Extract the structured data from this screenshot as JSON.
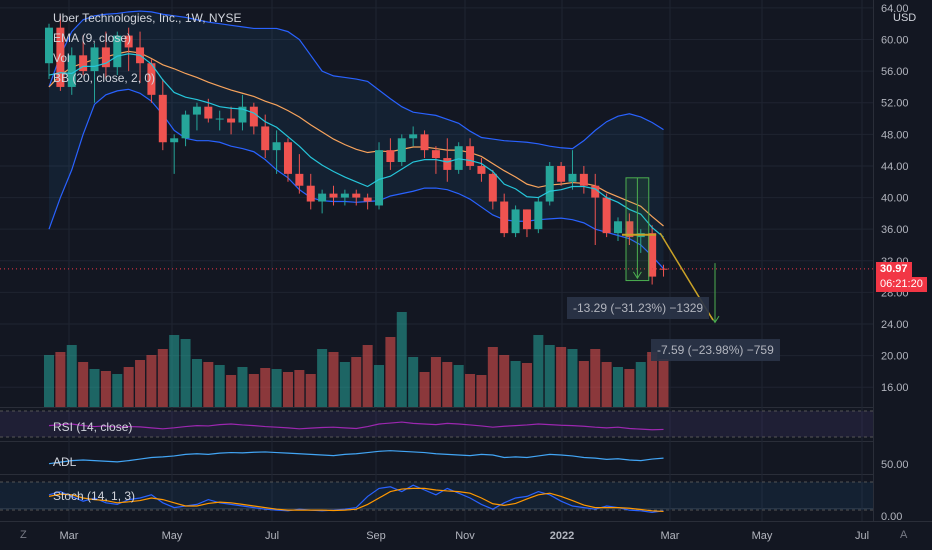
{
  "header": {
    "title": "Uber Technologies, Inc., 1W, NYSE",
    "currency": "USD"
  },
  "legend": {
    "ema": "EMA (9, close)",
    "vol": "Vol",
    "bb": "BB (20, close, 2, 0)"
  },
  "panes": {
    "rsi": "RSI (14, close)",
    "adl": "ADL",
    "stoch": "Stoch (14, 1, 3)"
  },
  "price_badge": {
    "price": "30.97",
    "countdown": "06:21:20"
  },
  "measurements": {
    "first": "-13.29 (−31.23%) −1329",
    "second": "-7.59 (−23.98%) −759"
  },
  "corner": {
    "left": "Z",
    "right": "A"
  },
  "colors": {
    "background": "#131722",
    "up": "#26a69a",
    "down": "#ef5350",
    "bb": "#2962ff",
    "ema": "#f7a35c",
    "rsi": "#9c27b0",
    "adl": "#42a5f5",
    "stoch_k": "#2962ff",
    "stoch_d": "#ff9800"
  },
  "chart_data": {
    "type": "candlestick",
    "y_ticks": [
      "64.00",
      "60.00",
      "56.00",
      "52.00",
      "48.00",
      "44.00",
      "40.00",
      "36.00",
      "32.00",
      "28.00",
      "24.00",
      "20.00",
      "16.00"
    ],
    "y_range": [
      13.5,
      65
    ],
    "stoch_ticks": [
      "50.00",
      "0.00"
    ],
    "x_ticks": [
      "Mar",
      "May",
      "Jul",
      "Sep",
      "Nov",
      "2022",
      "Mar",
      "May",
      "Jul"
    ],
    "candles": [
      {
        "o": 57.0,
        "h": 62.0,
        "l": 55.0,
        "c": 61.5
      },
      {
        "o": 61.5,
        "h": 63.0,
        "l": 53.5,
        "c": 54.0
      },
      {
        "o": 54.0,
        "h": 59.0,
        "l": 53.0,
        "c": 58.0
      },
      {
        "o": 58.0,
        "h": 60.5,
        "l": 55.5,
        "c": 56.0
      },
      {
        "o": 56.0,
        "h": 59.5,
        "l": 52.0,
        "c": 59.0
      },
      {
        "o": 59.0,
        "h": 61.0,
        "l": 55.0,
        "c": 56.5
      },
      {
        "o": 56.5,
        "h": 61.0,
        "l": 55.5,
        "c": 60.5
      },
      {
        "o": 60.5,
        "h": 61.5,
        "l": 56.0,
        "c": 59.0
      },
      {
        "o": 59.0,
        "h": 61.0,
        "l": 54.5,
        "c": 57.0
      },
      {
        "o": 57.0,
        "h": 57.5,
        "l": 52.0,
        "c": 53.0
      },
      {
        "o": 53.0,
        "h": 55.0,
        "l": 46.0,
        "c": 47.0
      },
      {
        "o": 47.0,
        "h": 48.0,
        "l": 43.0,
        "c": 47.5
      },
      {
        "o": 47.5,
        "h": 51.0,
        "l": 46.5,
        "c": 50.5
      },
      {
        "o": 50.5,
        "h": 52.0,
        "l": 48.5,
        "c": 51.5
      },
      {
        "o": 51.5,
        "h": 52.5,
        "l": 49.5,
        "c": 50.0
      },
      {
        "o": 50.0,
        "h": 51.0,
        "l": 48.5,
        "c": 50.0
      },
      {
        "o": 50.0,
        "h": 51.5,
        "l": 48.0,
        "c": 49.5
      },
      {
        "o": 49.5,
        "h": 53.0,
        "l": 48.5,
        "c": 51.5
      },
      {
        "o": 51.5,
        "h": 52.0,
        "l": 48.0,
        "c": 49.0
      },
      {
        "o": 49.0,
        "h": 50.5,
        "l": 45.0,
        "c": 46.0
      },
      {
        "o": 46.0,
        "h": 48.5,
        "l": 43.0,
        "c": 47.0
      },
      {
        "o": 47.0,
        "h": 47.5,
        "l": 42.0,
        "c": 43.0
      },
      {
        "o": 43.0,
        "h": 45.5,
        "l": 40.5,
        "c": 41.5
      },
      {
        "o": 41.5,
        "h": 43.0,
        "l": 38.5,
        "c": 39.5
      },
      {
        "o": 39.5,
        "h": 41.0,
        "l": 38.0,
        "c": 40.5
      },
      {
        "o": 40.5,
        "h": 41.5,
        "l": 39.0,
        "c": 40.0
      },
      {
        "o": 40.0,
        "h": 41.0,
        "l": 39.0,
        "c": 40.5
      },
      {
        "o": 40.5,
        "h": 41.0,
        "l": 39.0,
        "c": 40.0
      },
      {
        "o": 40.0,
        "h": 40.5,
        "l": 38.5,
        "c": 39.5
      },
      {
        "o": 39.0,
        "h": 47.0,
        "l": 38.5,
        "c": 46.0
      },
      {
        "o": 46.0,
        "h": 47.5,
        "l": 43.5,
        "c": 44.5
      },
      {
        "o": 44.5,
        "h": 48.0,
        "l": 44.0,
        "c": 47.5
      },
      {
        "o": 47.5,
        "h": 49.0,
        "l": 46.5,
        "c": 48.0
      },
      {
        "o": 48.0,
        "h": 48.5,
        "l": 45.0,
        "c": 46.0
      },
      {
        "o": 46.0,
        "h": 46.5,
        "l": 43.0,
        "c": 45.0
      },
      {
        "o": 45.0,
        "h": 47.5,
        "l": 42.0,
        "c": 43.5
      },
      {
        "o": 43.5,
        "h": 47.0,
        "l": 43.0,
        "c": 46.5
      },
      {
        "o": 46.5,
        "h": 47.5,
        "l": 43.5,
        "c": 44.0
      },
      {
        "o": 44.0,
        "h": 45.0,
        "l": 42.0,
        "c": 43.0
      },
      {
        "o": 43.0,
        "h": 43.5,
        "l": 38.5,
        "c": 39.5
      },
      {
        "o": 39.5,
        "h": 40.5,
        "l": 35.0,
        "c": 35.5
      },
      {
        "o": 35.5,
        "h": 39.0,
        "l": 35.0,
        "c": 38.5
      },
      {
        "o": 38.5,
        "h": 38.5,
        "l": 35.0,
        "c": 36.0
      },
      {
        "o": 36.0,
        "h": 40.0,
        "l": 35.5,
        "c": 39.5
      },
      {
        "o": 39.5,
        "h": 44.5,
        "l": 39.0,
        "c": 44.0
      },
      {
        "o": 44.0,
        "h": 44.5,
        "l": 41.5,
        "c": 42.0
      },
      {
        "o": 42.0,
        "h": 46.0,
        "l": 41.0,
        "c": 43.0
      },
      {
        "o": 43.0,
        "h": 44.0,
        "l": 40.5,
        "c": 41.5
      },
      {
        "o": 41.5,
        "h": 43.0,
        "l": 34.0,
        "c": 40.0
      },
      {
        "o": 40.0,
        "h": 40.5,
        "l": 35.0,
        "c": 35.5
      },
      {
        "o": 35.5,
        "h": 37.5,
        "l": 34.5,
        "c": 37.0
      },
      {
        "o": 37.0,
        "h": 38.0,
        "l": 34.0,
        "c": 35.0
      },
      {
        "o": 35.0,
        "h": 36.0,
        "l": 33.0,
        "c": 35.5
      },
      {
        "o": 35.5,
        "h": 36.5,
        "l": 29.0,
        "c": 30.0
      },
      {
        "o": 31.0,
        "h": 31.5,
        "l": 30.0,
        "c": 30.97
      }
    ],
    "volume": [
      0.52,
      0.55,
      0.62,
      0.45,
      0.38,
      0.36,
      0.33,
      0.4,
      0.47,
      0.52,
      0.58,
      0.72,
      0.68,
      0.48,
      0.45,
      0.42,
      0.32,
      0.4,
      0.33,
      0.39,
      0.38,
      0.35,
      0.37,
      0.33,
      0.58,
      0.55,
      0.45,
      0.5,
      0.62,
      0.42,
      0.7,
      0.95,
      0.5,
      0.35,
      0.5,
      0.45,
      0.42,
      0.33,
      0.32,
      0.6,
      0.52,
      0.46,
      0.44,
      0.72,
      0.62,
      0.6,
      0.58,
      0.46,
      0.58,
      0.45,
      0.4,
      0.38,
      0.45,
      0.55,
      0.48
    ],
    "bb_upper": [
      54,
      58,
      61,
      62.5,
      63,
      63.2,
      63.3,
      63.5,
      63.6,
      63.5,
      63.2,
      63,
      62.8,
      62.5,
      62.2,
      62,
      61.8,
      61.6,
      61.4,
      61.4,
      61.4,
      61,
      60,
      58,
      56,
      55.4,
      55.2,
      55,
      54.7,
      53.6,
      52.5,
      51.5,
      50.8,
      50.6,
      50.4,
      49.9,
      49.4,
      48.4,
      47.6,
      47.4,
      47.2,
      47.1,
      47,
      46.8,
      46.5,
      46.3,
      46.2,
      47.2,
      48.5,
      49.6,
      50.3,
      50.6,
      50.2,
      49.5,
      48.6
    ],
    "bb_lower": [
      36,
      40,
      43.5,
      48,
      51.8,
      53,
      53.5,
      53.7,
      53.2,
      52.2,
      50.5,
      48.5,
      47.5,
      47.2,
      47.2,
      47,
      46.5,
      46.2,
      45.8,
      44.8,
      43.5,
      42.5,
      41,
      40,
      39.6,
      39.5,
      39.5,
      39.4,
      39.5,
      39.6,
      40.2,
      40.5,
      40.8,
      41.2,
      41.2,
      41,
      40.5,
      39.8,
      38.8,
      37.8,
      37.2,
      37,
      37,
      37.2,
      37.3,
      37.4,
      37.2,
      36.8,
      36,
      35.6,
      35.2,
      34.8,
      34,
      32.6,
      31
    ],
    "ema": [
      54,
      55.5,
      56.5,
      57,
      57.5,
      57.8,
      58.2,
      58.5,
      58.3,
      57.6,
      56.8,
      56.3,
      55.7,
      55.2,
      54.6,
      54.1,
      53.6,
      53.2,
      52.8,
      52.2,
      51.7,
      51,
      50.2,
      49.2,
      48.3,
      47.4,
      46.7,
      46.1,
      45.7,
      45.9,
      45.8,
      46.1,
      46.4,
      46.4,
      46.2,
      46,
      46,
      45.7,
      45.2,
      44.3,
      43.4,
      42.6,
      41.7,
      41.3,
      41.6,
      41.7,
      41.9,
      41.8,
      41.5,
      40.7,
      40.1,
      39.5,
      38.9,
      37.6,
      36.4
    ],
    "ema9": [
      55.5,
      55.8,
      55.7,
      56.6,
      56.6,
      57,
      57.9,
      58.2,
      58,
      56.9,
      54.9,
      53.3,
      52.7,
      52.4,
      52,
      51.5,
      51.3,
      51.2,
      50.7,
      49.6,
      48.9,
      47.7,
      46.5,
      45.1,
      44.1,
      43.3,
      42.6,
      42,
      41.4,
      42.3,
      42.7,
      43.6,
      44.5,
      44.8,
      44.8,
      44.5,
      44.9,
      44.7,
      44.3,
      43.3,
      41.7,
      41.1,
      40.1,
      40,
      40.8,
      41,
      41.4,
      41.4,
      41.1,
      40,
      39.4,
      38.5,
      37.9,
      36.2,
      35
    ],
    "rsi": [
      0.45,
      0.48,
      0.5,
      0.45,
      0.42,
      0.44,
      0.4,
      0.42,
      0.41,
      0.38,
      0.35,
      0.38,
      0.42,
      0.45,
      0.44,
      0.48,
      0.5,
      0.47,
      0.45,
      0.42,
      0.4,
      0.38,
      0.35,
      0.37,
      0.39,
      0.4,
      0.38,
      0.36,
      0.42,
      0.5,
      0.53,
      0.56,
      0.52,
      0.5,
      0.48,
      0.52,
      0.5,
      0.47,
      0.44,
      0.4,
      0.43,
      0.45,
      0.47,
      0.5,
      0.48,
      0.46,
      0.45,
      0.43,
      0.4,
      0.38,
      0.4,
      0.36,
      0.34,
      0.32,
      0.33
    ],
    "adl": [
      0.3,
      0.35,
      0.4,
      0.42,
      0.4,
      0.38,
      0.36,
      0.4,
      0.45,
      0.5,
      0.52,
      0.55,
      0.6,
      0.62,
      0.6,
      0.64,
      0.66,
      0.65,
      0.67,
      0.68,
      0.66,
      0.64,
      0.62,
      0.6,
      0.58,
      0.56,
      0.6,
      0.62,
      0.66,
      0.7,
      0.72,
      0.7,
      0.68,
      0.66,
      0.62,
      0.6,
      0.58,
      0.56,
      0.6,
      0.58,
      0.5,
      0.52,
      0.5,
      0.55,
      0.6,
      0.58,
      0.55,
      0.5,
      0.48,
      0.44,
      0.46,
      0.42,
      0.4,
      0.45,
      0.48
    ],
    "stoch_k": [
      0.6,
      0.7,
      0.55,
      0.4,
      0.5,
      0.35,
      0.3,
      0.45,
      0.5,
      0.6,
      0.35,
      0.2,
      0.25,
      0.3,
      0.45,
      0.35,
      0.3,
      0.25,
      0.2,
      0.15,
      0.12,
      0.1,
      0.15,
      0.12,
      0.1,
      0.12,
      0.15,
      0.2,
      0.55,
      0.8,
      0.85,
      0.7,
      0.9,
      0.75,
      0.6,
      0.8,
      0.65,
      0.5,
      0.3,
      0.15,
      0.35,
      0.5,
      0.55,
      0.7,
      0.6,
      0.4,
      0.25,
      0.2,
      0.15,
      0.25,
      0.2,
      0.12,
      0.1,
      0.05,
      0.1
    ],
    "stoch_d": [
      0.55,
      0.62,
      0.6,
      0.5,
      0.45,
      0.42,
      0.35,
      0.38,
      0.42,
      0.5,
      0.45,
      0.35,
      0.25,
      0.25,
      0.33,
      0.37,
      0.35,
      0.3,
      0.25,
      0.2,
      0.15,
      0.12,
      0.12,
      0.12,
      0.12,
      0.11,
      0.12,
      0.15,
      0.3,
      0.5,
      0.7,
      0.78,
      0.8,
      0.8,
      0.75,
      0.72,
      0.7,
      0.65,
      0.5,
      0.32,
      0.27,
      0.33,
      0.47,
      0.6,
      0.65,
      0.55,
      0.42,
      0.28,
      0.2,
      0.2,
      0.2,
      0.18,
      0.14,
      0.1,
      0.08
    ]
  }
}
